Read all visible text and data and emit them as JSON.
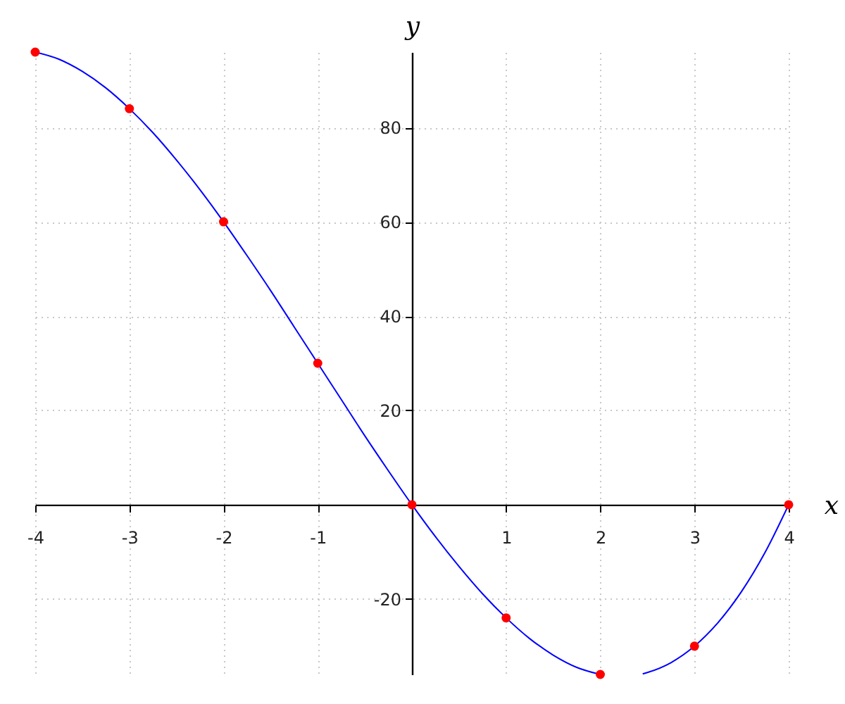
{
  "chart_data": {
    "type": "line",
    "xlabel": "x",
    "ylabel": "y",
    "xlim": [
      -4,
      4
    ],
    "ylim": [
      -36,
      96
    ],
    "xticks": [
      -4,
      -3,
      -2,
      -1,
      1,
      2,
      3,
      4
    ],
    "yticks": [
      -20,
      20,
      40,
      60,
      80
    ],
    "grid": true,
    "series": [
      {
        "color": "#0000ff",
        "x": [
          -4,
          -3.75,
          -3.5,
          -3.25,
          -3,
          -2.75,
          -2.5,
          -2.25,
          -2,
          -1.75,
          -1.5,
          -1.25,
          -1,
          -0.75,
          -0.5,
          -0.25,
          0,
          0.25,
          0.5,
          0.75,
          1,
          1.25,
          1.5,
          1.75,
          2,
          2.25,
          2.45,
          2.5,
          2.75,
          3,
          3.25,
          3.5,
          3.75,
          4
        ],
        "values": [
          96,
          94.5,
          91.9,
          88.4,
          84,
          78.9,
          73.1,
          66.8,
          60,
          52.8,
          45.4,
          37.7,
          30,
          22.3,
          14.6,
          7.2,
          0,
          -6.8,
          -13.1,
          -18.9,
          -24,
          -28.4,
          -31.9,
          -34.5,
          -36,
          null,
          -35.9,
          -35.6,
          -33.5,
          -30,
          -25,
          -18.4,
          -10.1,
          0
        ]
      },
      {
        "type": "scatter",
        "color": "#ff0000",
        "marker": "circle",
        "x": [
          -4,
          -3,
          -2,
          -1,
          0,
          1,
          2,
          3,
          4
        ],
        "values": [
          96,
          84,
          60,
          30,
          0,
          -24,
          -36,
          -30,
          0
        ]
      }
    ]
  }
}
